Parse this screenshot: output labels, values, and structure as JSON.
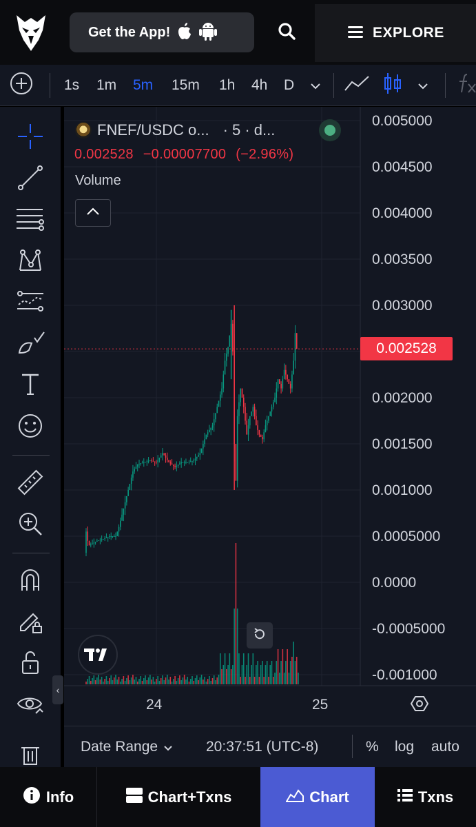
{
  "header": {
    "get_app_label": "Get the App!",
    "explore_label": "EXPLORE",
    "icons": [
      "eagle-logo",
      "apple-icon",
      "android-icon",
      "search-icon",
      "menu-icon"
    ]
  },
  "toolbar": {
    "intervals": [
      "1s",
      "1m",
      "5m",
      "15m",
      "1h",
      "4h",
      "D"
    ],
    "active_interval": "5m",
    "accent_color": "#2962ff"
  },
  "legend": {
    "symbol": "FNEF/USDC o...",
    "meta": "· 5 · d...",
    "last": "0.002528",
    "change": "−0.00007700",
    "change_pct": "(−2.96%)",
    "volume_label": "Volume",
    "down_color": "#f23645",
    "up_color": "#089981"
  },
  "price_axis": {
    "labels": [
      "0.005000",
      "0.004500",
      "0.004000",
      "0.003500",
      "0.003000",
      "0.002000",
      "0.001500",
      "0.001000",
      "0.0005000",
      "0.0000",
      "-0.0005000",
      "-0.001000"
    ],
    "current_price_tag": "0.002528"
  },
  "time_axis": {
    "labels": [
      "24",
      "25"
    ]
  },
  "chart_data": {
    "type": "candlestick-line",
    "title": "",
    "xlabel": "",
    "ylabel": "",
    "ylim": [
      -0.0011,
      0.0051
    ],
    "x_ticks": [
      "24",
      "25"
    ],
    "last_price": 0.002528,
    "price_points": [
      [
        0,
        0.00032
      ],
      [
        1,
        0.00055
      ],
      [
        2,
        0.00045
      ],
      [
        3,
        0.0004
      ],
      [
        5,
        0.00042
      ],
      [
        8,
        0.00045
      ],
      [
        12,
        0.00047
      ],
      [
        16,
        0.0005
      ],
      [
        20,
        0.0005
      ],
      [
        22,
        0.0006
      ],
      [
        25,
        0.0008
      ],
      [
        28,
        0.001
      ],
      [
        31,
        0.0012
      ],
      [
        34,
        0.00128
      ],
      [
        38,
        0.0013
      ],
      [
        42,
        0.00132
      ],
      [
        46,
        0.0013
      ],
      [
        50,
        0.0014
      ],
      [
        54,
        0.0013
      ],
      [
        58,
        0.00125
      ],
      [
        62,
        0.0013
      ],
      [
        66,
        0.0013
      ],
      [
        70,
        0.00132
      ],
      [
        74,
        0.0014
      ],
      [
        78,
        0.0016
      ],
      [
        82,
        0.0017
      ],
      [
        85,
        0.0019
      ],
      [
        88,
        0.0021
      ],
      [
        90,
        0.0024
      ],
      [
        92,
        0.00255
      ],
      [
        94,
        0.0028
      ],
      [
        95,
        0.0025
      ],
      [
        96,
        0.0015
      ],
      [
        97,
        0.0011
      ],
      [
        98,
        0.0018
      ],
      [
        100,
        0.0021
      ],
      [
        102,
        0.0019
      ],
      [
        104,
        0.0016
      ],
      [
        106,
        0.0018
      ],
      [
        108,
        0.0019
      ],
      [
        110,
        0.0017
      ],
      [
        112,
        0.0016
      ],
      [
        114,
        0.00155
      ],
      [
        116,
        0.0017
      ],
      [
        118,
        0.0018
      ],
      [
        120,
        0.0019
      ],
      [
        122,
        0.002
      ],
      [
        124,
        0.0022
      ],
      [
        126,
        0.0021
      ],
      [
        128,
        0.0023
      ],
      [
        130,
        0.0022
      ],
      [
        132,
        0.0021
      ],
      [
        134,
        0.0024
      ],
      [
        135,
        0.0027
      ],
      [
        136,
        0.002528
      ]
    ],
    "volume_peak_index": 96
  },
  "rangebar": {
    "date_range_label": "Date Range",
    "clock": "20:37:51 (UTC-8)",
    "percent_label": "%",
    "log_label": "log",
    "auto_label": "auto"
  },
  "bottomnav": {
    "info_label": "Info",
    "chart_txns_label": "Chart+Txns",
    "chart_label": "Chart",
    "txns_label": "Txns",
    "active_color": "#4b5bd3"
  }
}
